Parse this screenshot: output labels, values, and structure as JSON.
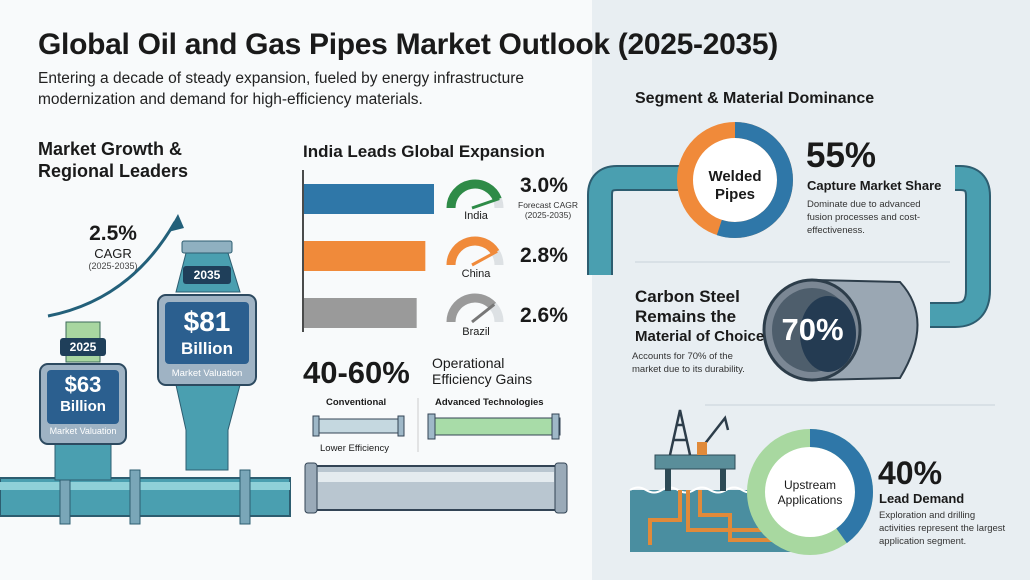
{
  "header": {
    "title": "Global Oil and Gas Pipes Market Outlook (2025-2035)",
    "subtitle": "Entering a decade of steady expansion, fueled by energy infrastructure modernization and demand for high-efficiency materials."
  },
  "growth": {
    "heading": "Market Growth & Regional Leaders",
    "cagr": "2.5%",
    "cagr_label": "CAGR",
    "cagr_period": "(2025-2035)",
    "y2025": {
      "year": "2025",
      "value": "$63",
      "unit": "Billion",
      "label": "Market Valuation"
    },
    "y2035": {
      "year": "2035",
      "value": "$81",
      "unit": "Billion",
      "label": "Market Valuation"
    }
  },
  "regions": {
    "heading": "India Leads Global Expansion",
    "forecast_label": "Forecast CAGR",
    "forecast_period": "(2025-2035)",
    "items": [
      {
        "name": "India",
        "value": "3.0%",
        "cagr": 3.0,
        "color": "#2f77a8",
        "gauge": "#2e8b47"
      },
      {
        "name": "China",
        "value": "2.8%",
        "cagr": 2.8,
        "color": "#f08a3a",
        "gauge": "#f08a3a"
      },
      {
        "name": "Brazil",
        "value": "2.6%",
        "cagr": 2.6,
        "color": "#9a9a9a",
        "gauge": "#9a9a9a"
      }
    ]
  },
  "efficiency": {
    "value": "40-60%",
    "label_1": "Operational",
    "label_2": "Efficiency Gains",
    "conventional": "Conventional",
    "conventional_note": "Lower Efficiency",
    "advanced": "Advanced Technologies"
  },
  "segment": {
    "heading": "Segment & Material Dominance",
    "welded": {
      "label_1": "Welded",
      "label_2": "Pipes",
      "value": "55%",
      "share": 55,
      "caption": "Capture Market Share",
      "desc": "Dominate due to advanced fusion processes and cost-effectiveness.",
      "colors": {
        "share": "#2f77a8",
        "rest": "#f08a3a"
      }
    },
    "carbon": {
      "title_1": "Carbon Steel",
      "title_2": "Remains the",
      "title_3": "Material of Choice",
      "value": "70%",
      "desc_1": "Accounts for 70% of the",
      "desc_2": "market due to its durability."
    },
    "upstream": {
      "label_1": "Upstream",
      "label_2": "Applications",
      "value": "40%",
      "share": 40,
      "caption": "Lead Demand",
      "desc_1": "Exploration and drilling",
      "desc_2": "activities represent the largest",
      "desc_3": "application segment.",
      "colors": {
        "share": "#2f77a8",
        "rest": "#a8d8a0"
      }
    }
  }
}
